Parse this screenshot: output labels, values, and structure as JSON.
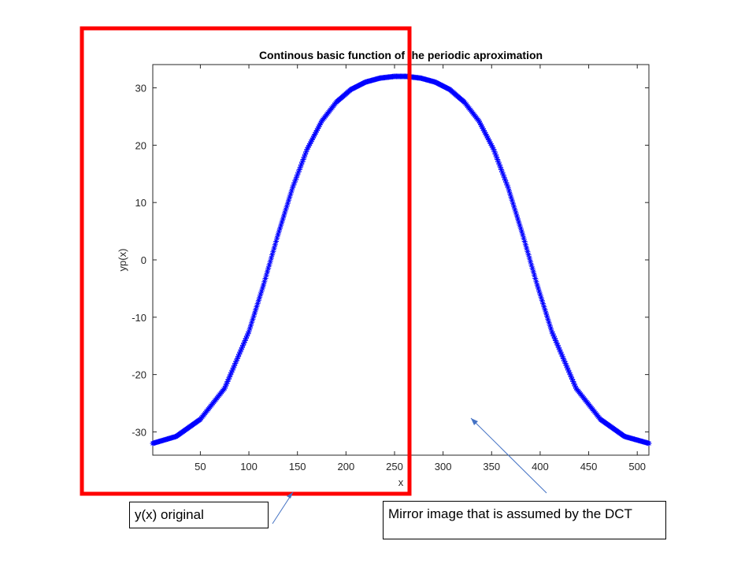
{
  "chart_data": {
    "type": "scatter",
    "title": "Continous basic function of the periodic aproximation",
    "xlabel": "x",
    "ylabel": "yp(x)",
    "xlim": [
      1,
      512
    ],
    "ylim": [
      -32,
      32
    ],
    "x_ticks": [
      50,
      100,
      150,
      200,
      250,
      300,
      350,
      400,
      450,
      500
    ],
    "y_ticks": [
      -30,
      -20,
      -10,
      0,
      10,
      20,
      30
    ],
    "marker": "*",
    "grid": false,
    "series": [
      {
        "color": "#0000ff",
        "x": [
          1,
          25,
          50,
          75,
          100,
          115,
          130,
          145,
          160,
          175,
          190,
          205,
          220,
          235,
          250,
          256,
          262,
          277,
          292,
          307,
          322,
          337,
          352,
          367,
          382,
          397,
          412,
          437,
          462,
          487,
          512
        ],
        "y": [
          -32,
          -30.8,
          -27.8,
          -22.4,
          -12.5,
          -4.4,
          4.4,
          12.6,
          19.3,
          24.2,
          27.5,
          29.7,
          31.0,
          31.7,
          32.0,
          32.0,
          32.0,
          31.7,
          31.0,
          29.7,
          27.5,
          24.2,
          19.3,
          12.6,
          4.4,
          -4.4,
          -12.5,
          -22.4,
          -27.8,
          -30.8,
          -32
        ]
      }
    ]
  },
  "annotations": {
    "original_label": "y(x) original",
    "mirror_label": "Mirror image that is assumed by the DCT",
    "highlight_color": "#ff0000",
    "arrow_color": "#4472c4"
  }
}
